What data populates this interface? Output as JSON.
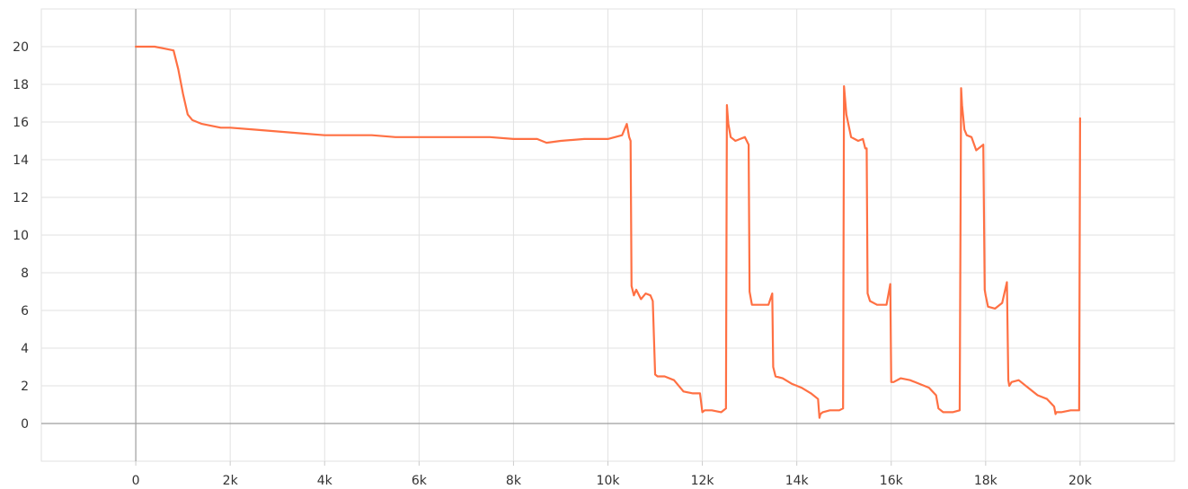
{
  "chart_data": {
    "type": "line",
    "title": "",
    "xlabel": "",
    "ylabel": "",
    "xlim": [
      -2000,
      22000
    ],
    "ylim": [
      -2,
      22
    ],
    "x_ticks": [
      0,
      2000,
      4000,
      6000,
      8000,
      10000,
      12000,
      14000,
      16000,
      18000,
      20000
    ],
    "x_tick_labels": [
      "0",
      "2k",
      "4k",
      "6k",
      "8k",
      "10k",
      "12k",
      "14k",
      "16k",
      "18k",
      "20k"
    ],
    "y_ticks": [
      0,
      2,
      4,
      6,
      8,
      10,
      12,
      14,
      16,
      18,
      20
    ],
    "y_tick_labels": [
      "0",
      "2",
      "4",
      "6",
      "8",
      "10",
      "12",
      "14",
      "16",
      "18",
      "20"
    ],
    "grid": true,
    "legend": "none",
    "series": [
      {
        "color": "#ff7043",
        "x": [
          0,
          400,
          600,
          800,
          900,
          1000,
          1100,
          1200,
          1400,
          1600,
          1800,
          2000,
          2500,
          3000,
          3500,
          4000,
          4500,
          5000,
          5500,
          6000,
          6500,
          7000,
          7500,
          8000,
          8500,
          8700,
          9000,
          9500,
          10000,
          10300,
          10400,
          10450,
          10480,
          10500,
          10550,
          10600,
          10700,
          10800,
          10900,
          10950,
          11000,
          11050,
          11200,
          11400,
          11600,
          11800,
          11950,
          12000,
          12050,
          12200,
          12400,
          12500,
          12520,
          12550,
          12600,
          12700,
          12800,
          12900,
          12980,
          13000,
          13050,
          13200,
          13400,
          13480,
          13500,
          13550,
          13700,
          13900,
          14100,
          14300,
          14450,
          14480,
          14500,
          14550,
          14700,
          14900,
          14980,
          15000,
          15050,
          15150,
          15300,
          15400,
          15450,
          15480,
          15500,
          15550,
          15700,
          15900,
          15980,
          16000,
          16050,
          16200,
          16400,
          16600,
          16800,
          16950,
          17000,
          17100,
          17300,
          17450,
          17480,
          17500,
          17550,
          17600,
          17700,
          17800,
          17950,
          17980,
          18000,
          18050,
          18200,
          18350,
          18450,
          18480,
          18500,
          18550,
          18700,
          18900,
          19100,
          19300,
          19450,
          19480,
          19500,
          19600,
          19800,
          19980,
          20000
        ],
        "y": [
          20,
          20,
          19.9,
          19.8,
          18.8,
          17.5,
          16.4,
          16.1,
          15.9,
          15.8,
          15.7,
          15.7,
          15.6,
          15.5,
          15.4,
          15.3,
          15.3,
          15.3,
          15.2,
          15.2,
          15.2,
          15.2,
          15.2,
          15.1,
          15.1,
          14.9,
          15.0,
          15.1,
          15.1,
          15.3,
          15.9,
          15.2,
          15.0,
          7.3,
          6.8,
          7.1,
          6.6,
          6.9,
          6.8,
          6.5,
          2.6,
          2.5,
          2.5,
          2.3,
          1.7,
          1.6,
          1.6,
          0.6,
          0.7,
          0.7,
          0.6,
          0.8,
          16.9,
          15.9,
          15.2,
          15.0,
          15.1,
          15.2,
          14.8,
          7.0,
          6.3,
          6.3,
          6.3,
          6.9,
          3.0,
          2.5,
          2.4,
          2.1,
          1.9,
          1.6,
          1.3,
          0.3,
          0.5,
          0.6,
          0.7,
          0.7,
          0.8,
          17.9,
          16.4,
          15.2,
          15.0,
          15.1,
          14.6,
          14.6,
          6.9,
          6.5,
          6.3,
          6.3,
          7.4,
          2.2,
          2.2,
          2.4,
          2.3,
          2.1,
          1.9,
          1.5,
          0.8,
          0.6,
          0.6,
          0.7,
          17.8,
          16.9,
          15.6,
          15.3,
          15.2,
          14.5,
          14.8,
          7.1,
          6.8,
          6.2,
          6.1,
          6.4,
          7.5,
          2.3,
          2.0,
          2.2,
          2.3,
          1.9,
          1.5,
          1.3,
          0.9,
          0.5,
          0.6,
          0.6,
          0.7,
          0.7,
          16.2
        ]
      }
    ]
  }
}
